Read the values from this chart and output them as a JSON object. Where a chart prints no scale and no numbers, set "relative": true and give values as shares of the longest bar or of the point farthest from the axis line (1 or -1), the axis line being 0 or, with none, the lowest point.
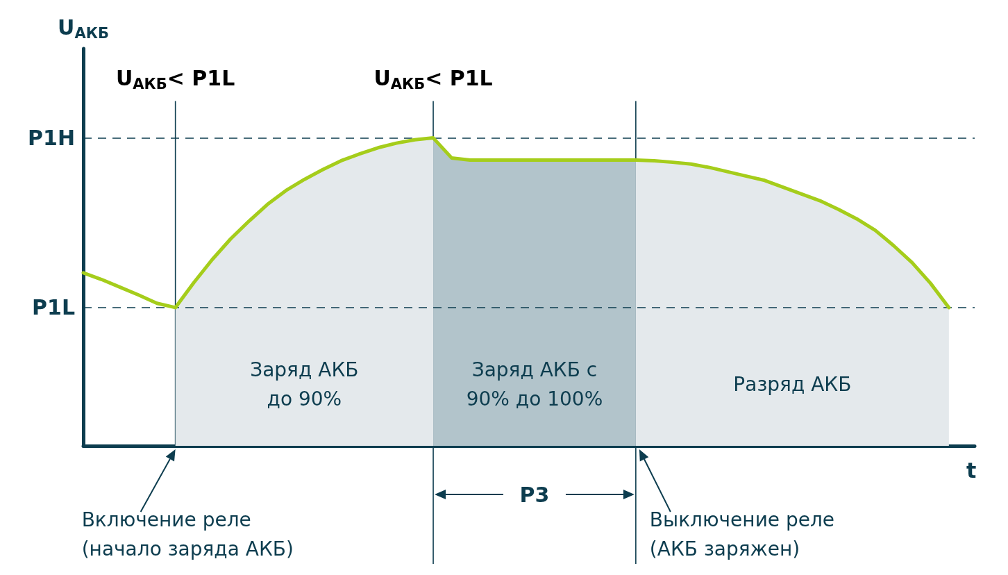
{
  "chart_data": {
    "type": "line",
    "relative": true,
    "xlabel": "t",
    "ylabel": "U$_{АКБ}$",
    "legend": false,
    "marker": "none",
    "grid": "x",
    "categories": [
      null,
      null,
      null,
      null,
      null,
      null,
      null,
      null,
      null,
      null,
      null,
      null,
      null,
      null,
      null,
      null,
      null,
      null,
      null,
      null,
      null,
      null,
      null,
      null,
      null,
      null,
      null,
      null,
      null,
      null,
      null,
      null,
      null,
      null,
      null,
      null,
      null,
      null,
      null,
      null,
      null,
      null,
      null,
      null,
      null,
      null,
      null,
      null
    ],
    "series": [
      {
        "type": "area",
        "name": "Заряд АКБ\nдо 90%",
        "color": "#e4e9ec",
        "values": [
          null,
          null,
          null,
          null,
          null,
          0.449,
          0.53,
          0.605,
          0.672,
          0.73,
          0.784,
          0.829,
          0.865,
          0.897,
          0.926,
          0.948,
          0.968,
          0.983,
          0.994,
          1,
          null,
          null,
          null,
          null,
          null,
          null,
          null,
          null,
          null,
          null,
          null,
          null,
          null,
          null,
          null,
          null,
          null,
          null,
          null,
          null,
          null,
          null,
          null,
          null,
          null,
          null,
          null,
          null
        ]
      },
      {
        "type": "area",
        "name": "Заряд АКБ с\n90% до 100%",
        "color": "#b2c4cb",
        "values": [
          null,
          null,
          null,
          null,
          null,
          null,
          null,
          null,
          null,
          null,
          null,
          null,
          null,
          null,
          null,
          null,
          null,
          null,
          null,
          1,
          0.935,
          0.928,
          0.928,
          0.928,
          0.928,
          0.928,
          0.928,
          0.928,
          0.928,
          0.928,
          0.928,
          null,
          null,
          null,
          null,
          null,
          null,
          null,
          null,
          null,
          null,
          null,
          null,
          null,
          null,
          null,
          null,
          null
        ]
      },
      {
        "type": "area",
        "name": "Разряд АКБ",
        "color": "#e4e9ec",
        "values": [
          null,
          null,
          null,
          null,
          null,
          null,
          null,
          null,
          null,
          null,
          null,
          null,
          null,
          null,
          null,
          null,
          null,
          null,
          null,
          null,
          null,
          null,
          null,
          null,
          null,
          null,
          null,
          null,
          null,
          null,
          0.928,
          0.926,
          0.921,
          0.915,
          0.904,
          0.89,
          0.876,
          0.862,
          0.84,
          0.818,
          0.796,
          0.768,
          0.737,
          0.7,
          0.65,
          0.595,
          0.528,
          0.449
        ]
      },
      {
        "color": "#a5cd1b",
        "values": [
          0.562,
          0.54,
          0.515,
          0.49,
          0.463,
          0.449,
          0.53,
          0.605,
          0.672,
          0.73,
          0.784,
          0.829,
          0.865,
          0.897,
          0.926,
          0.948,
          0.968,
          0.983,
          0.994,
          1,
          0.935,
          0.928,
          0.928,
          0.928,
          0.928,
          0.928,
          0.928,
          0.928,
          0.928,
          0.928,
          0.928,
          0.926,
          0.921,
          0.915,
          0.904,
          0.89,
          0.876,
          0.862,
          0.84,
          0.818,
          0.796,
          0.768,
          0.737,
          0.7,
          0.65,
          0.595,
          0.528,
          0.449
        ]
      }
    ],
    "ref_lines": [
      {
        "axis": "y",
        "value": 1,
        "label": "P1H",
        "line_style": "dashed",
        "color": "#0d3d4f"
      },
      {
        "axis": "y",
        "value": 0.449,
        "label": "P1L",
        "line_style": "dashed",
        "color": "#0d3d4f"
      }
    ],
    "annotations": [
      "U$_{АКБ}$< P1L",
      "U$_{АКБ}$< P1L",
      "Включение реле\n(начало заряда АКБ)",
      "P3",
      "Выключение реле\n(АКБ заряжен)"
    ]
  }
}
